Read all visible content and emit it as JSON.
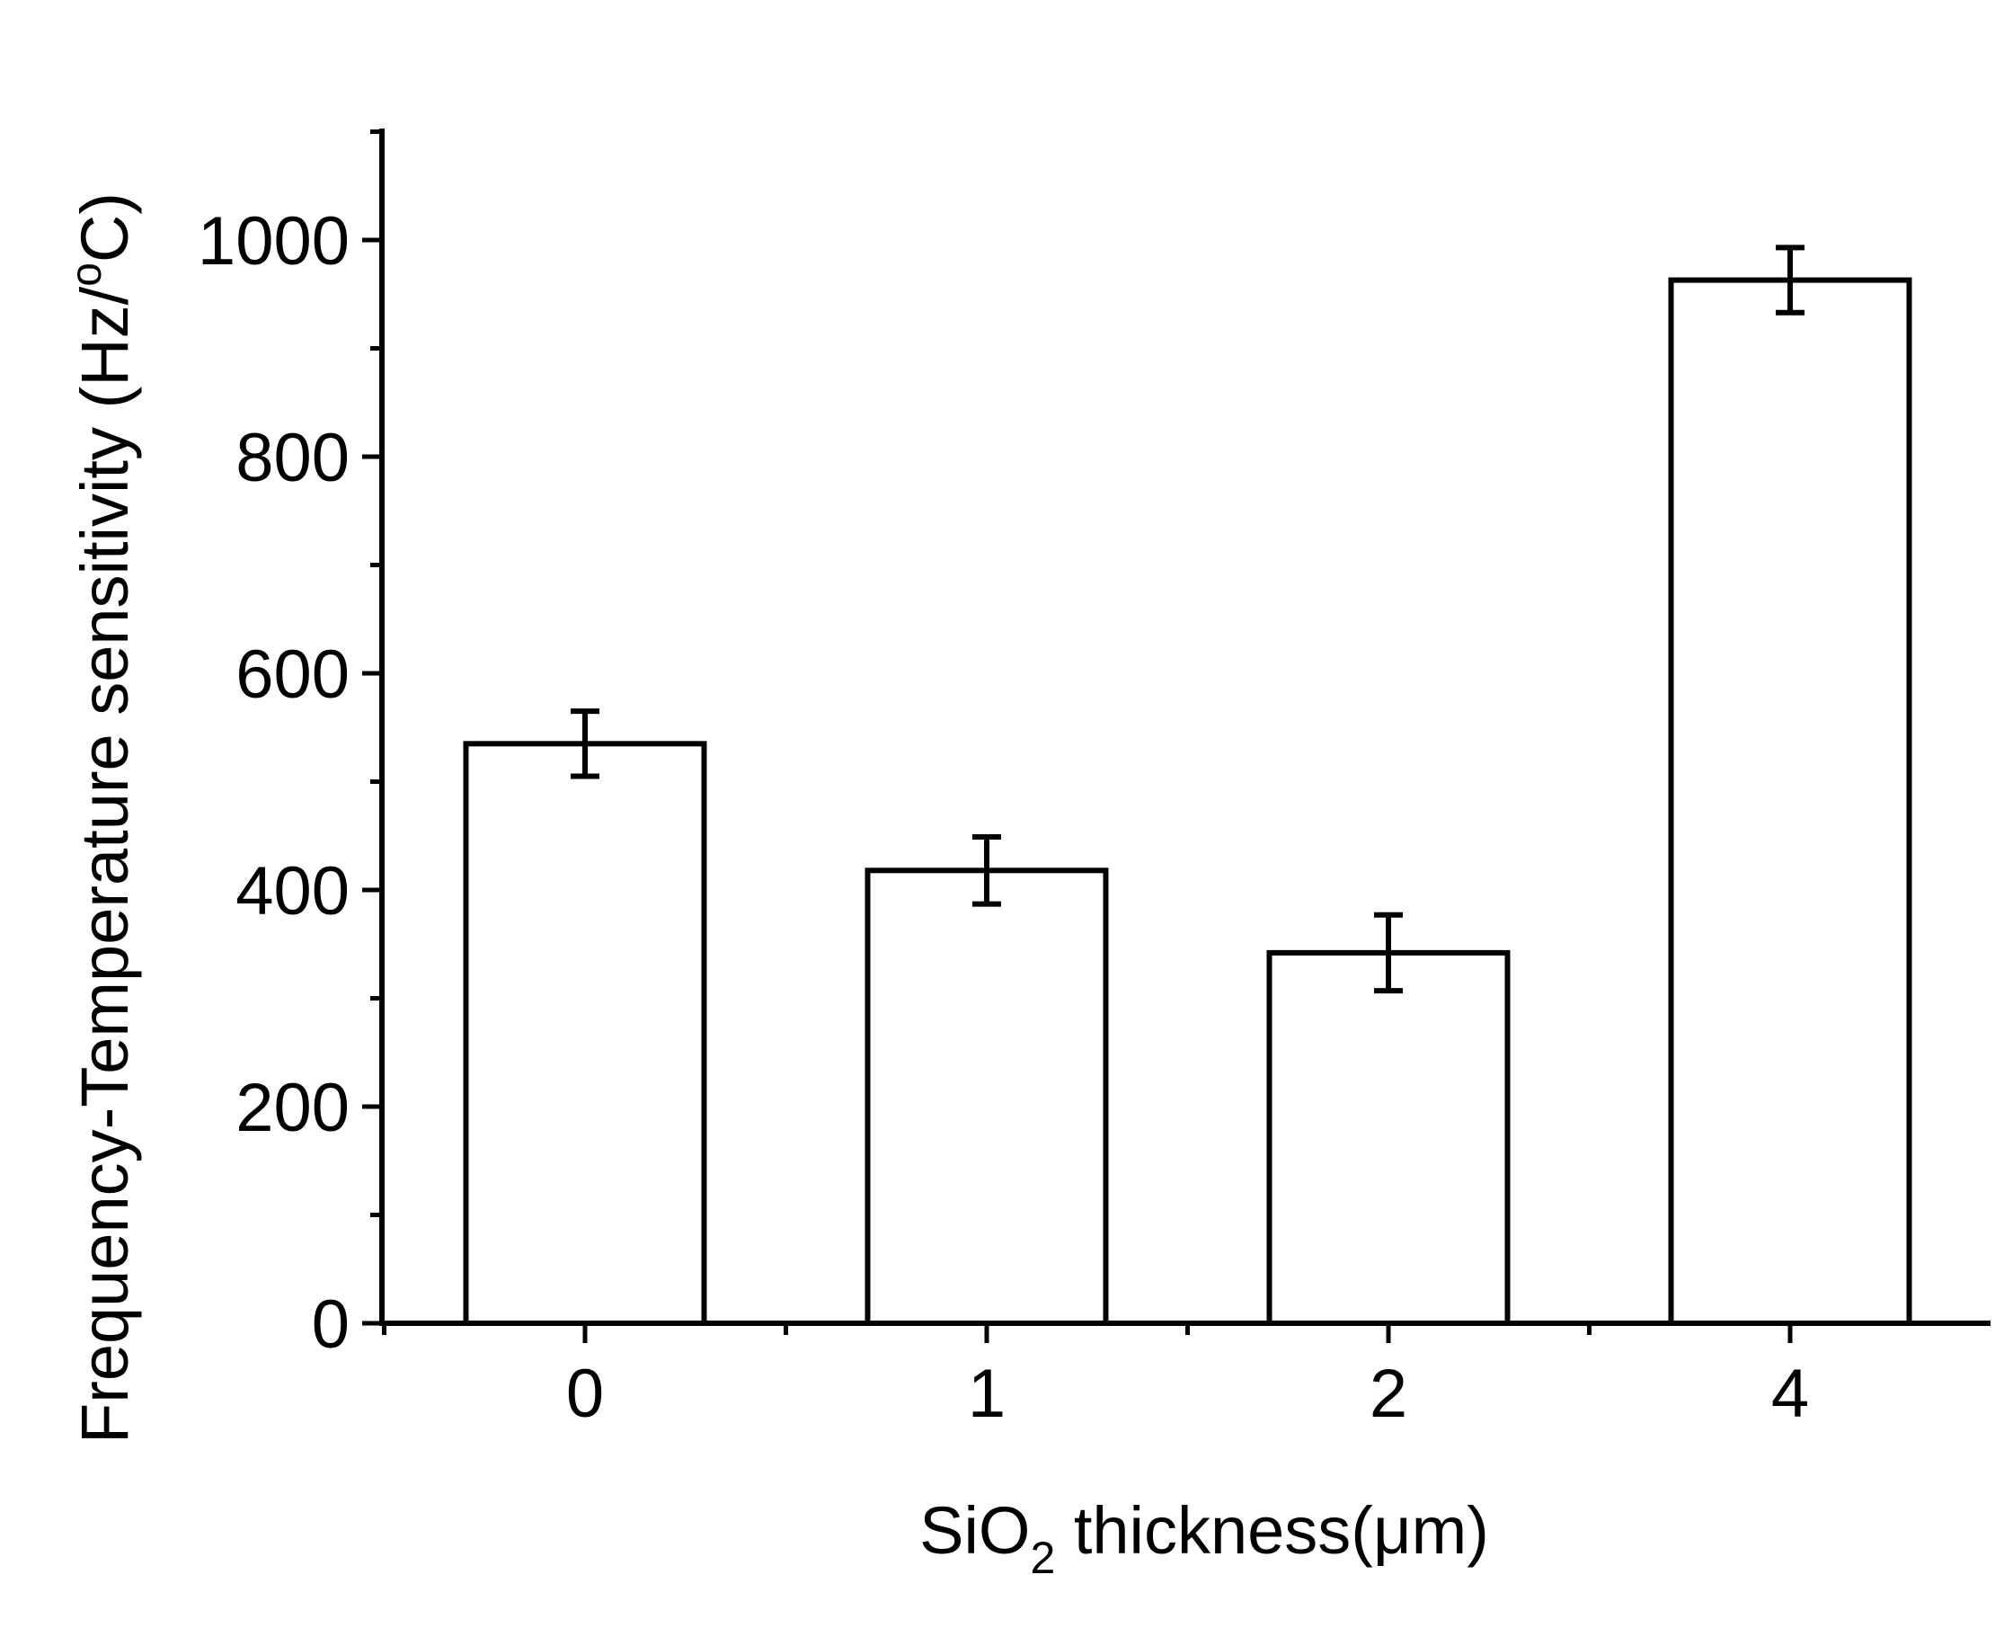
{
  "chart_data": {
    "type": "bar",
    "categories": [
      "0",
      "1",
      "2",
      "4"
    ],
    "values": [
      535,
      418,
      342,
      963
    ],
    "errors": [
      30,
      31,
      35,
      30
    ],
    "ylim": [
      0,
      1100
    ],
    "yticks": [
      "0",
      "200",
      "400",
      "600",
      "800",
      "1000"
    ],
    "ylabel": "Frequency-Temperature sensitivity (Hz/oC)",
    "ylabel_parts": {
      "main": "Frequency-Temperature sensitivity (Hz/",
      "superscript": "o",
      "end": "C)"
    },
    "xlabel": "SiO2 thickness(μm)",
    "xlabel_parts": {
      "pre": "SiO",
      "subscript": "2",
      "post": " thickness(μm)"
    },
    "bar_fill": "#ffffff",
    "bar_stroke": "#000000",
    "grid": false,
    "legend": "none"
  }
}
